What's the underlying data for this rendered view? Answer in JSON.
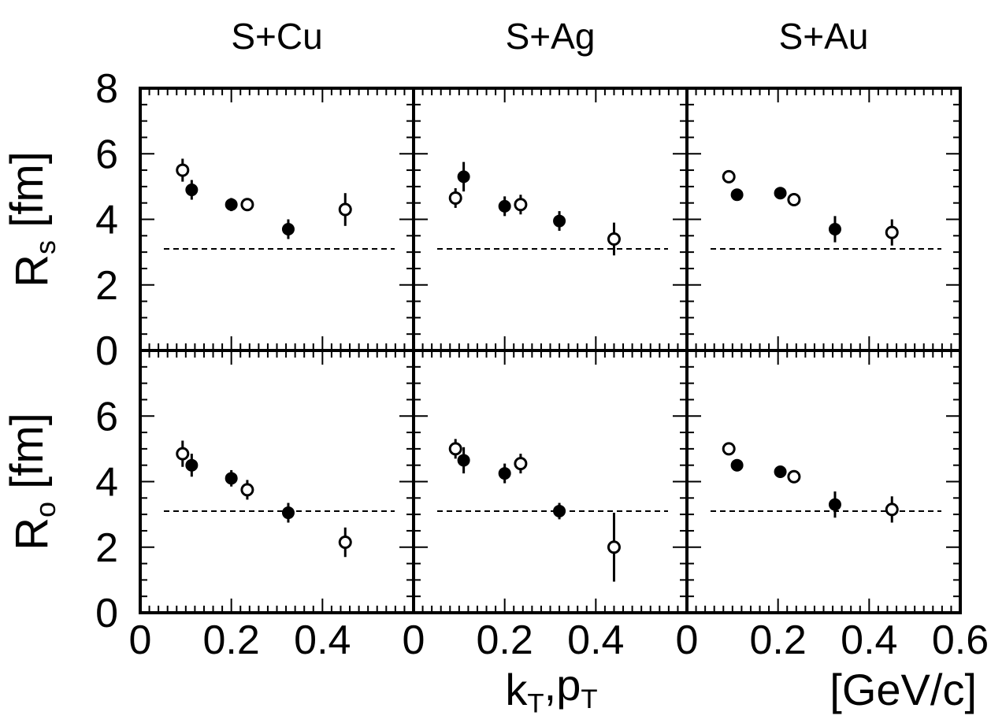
{
  "chart_data": {
    "type": "scatter",
    "panel_titles": [
      "S+Cu",
      "S+Ag",
      "S+Au"
    ],
    "rows": [
      {
        "id": "Rs",
        "label_main": "R",
        "label_sub": "s",
        "label_rest": " [fm]"
      },
      {
        "id": "Ro",
        "label_main": "R",
        "label_sub": "o",
        "label_rest": " [fm]"
      }
    ],
    "xlabel_main": "k",
    "xlabel_sub1": "T",
    "xlabel_mid": ",p",
    "xlabel_sub2": "T",
    "x_unit": "[GeV/c]",
    "xlim": [
      0,
      0.6
    ],
    "ylim": [
      0,
      8
    ],
    "x_ticks": [
      "0",
      "0.2",
      "0.4"
    ],
    "x_ticks_last": [
      "0",
      "0.2",
      "0.4",
      "0.6"
    ],
    "y_ticks_top": [
      "8",
      "6",
      "4",
      "2",
      "0"
    ],
    "y_ticks_bottom": [
      "6",
      "4",
      "2",
      "0"
    ],
    "reference_line": 3.1,
    "panels": [
      {
        "title": "S+Cu",
        "row": "Rs",
        "points": [
          {
            "x": 0.093,
            "y": 5.5,
            "err": 0.35,
            "filled": false
          },
          {
            "x": 0.113,
            "y": 4.9,
            "err": 0.3,
            "filled": true
          },
          {
            "x": 0.2,
            "y": 4.45,
            "err": 0.2,
            "filled": true
          },
          {
            "x": 0.235,
            "y": 4.45,
            "err": 0.15,
            "filled": false
          },
          {
            "x": 0.325,
            "y": 3.7,
            "err": 0.3,
            "filled": true
          },
          {
            "x": 0.45,
            "y": 4.3,
            "err": 0.5,
            "filled": false
          }
        ]
      },
      {
        "title": "S+Ag",
        "row": "Rs",
        "points": [
          {
            "x": 0.092,
            "y": 4.65,
            "err": 0.3,
            "filled": false
          },
          {
            "x": 0.11,
            "y": 5.3,
            "err": 0.45,
            "filled": true
          },
          {
            "x": 0.2,
            "y": 4.4,
            "err": 0.3,
            "filled": true
          },
          {
            "x": 0.235,
            "y": 4.45,
            "err": 0.3,
            "filled": false
          },
          {
            "x": 0.32,
            "y": 3.95,
            "err": 0.3,
            "filled": true
          },
          {
            "x": 0.44,
            "y": 3.4,
            "err": 0.5,
            "filled": false
          }
        ]
      },
      {
        "title": "S+Au",
        "row": "Rs",
        "points": [
          {
            "x": 0.092,
            "y": 5.3,
            "err": 0.15,
            "filled": false
          },
          {
            "x": 0.11,
            "y": 4.75,
            "err": 0.15,
            "filled": true
          },
          {
            "x": 0.205,
            "y": 4.8,
            "err": 0.15,
            "filled": true
          },
          {
            "x": 0.235,
            "y": 4.6,
            "err": 0.15,
            "filled": false
          },
          {
            "x": 0.325,
            "y": 3.7,
            "err": 0.4,
            "filled": true
          },
          {
            "x": 0.45,
            "y": 3.6,
            "err": 0.4,
            "filled": false
          }
        ]
      },
      {
        "title": "S+Cu",
        "row": "Ro",
        "points": [
          {
            "x": 0.093,
            "y": 4.85,
            "err": 0.4,
            "filled": false
          },
          {
            "x": 0.113,
            "y": 4.5,
            "err": 0.35,
            "filled": true
          },
          {
            "x": 0.2,
            "y": 4.1,
            "err": 0.25,
            "filled": true
          },
          {
            "x": 0.235,
            "y": 3.75,
            "err": 0.3,
            "filled": false
          },
          {
            "x": 0.325,
            "y": 3.05,
            "err": 0.3,
            "filled": true
          },
          {
            "x": 0.45,
            "y": 2.15,
            "err": 0.45,
            "filled": false
          }
        ]
      },
      {
        "title": "S+Ag",
        "row": "Ro",
        "points": [
          {
            "x": 0.092,
            "y": 5.0,
            "err": 0.3,
            "filled": false
          },
          {
            "x": 0.11,
            "y": 4.65,
            "err": 0.4,
            "filled": true
          },
          {
            "x": 0.2,
            "y": 4.25,
            "err": 0.3,
            "filled": true
          },
          {
            "x": 0.235,
            "y": 4.55,
            "err": 0.3,
            "filled": false
          },
          {
            "x": 0.32,
            "y": 3.1,
            "err": 0.25,
            "filled": true
          },
          {
            "x": 0.44,
            "y": 2.0,
            "err": 1.05,
            "filled": false
          }
        ]
      },
      {
        "title": "S+Au",
        "row": "Ro",
        "points": [
          {
            "x": 0.092,
            "y": 5.0,
            "err": 0.15,
            "filled": false
          },
          {
            "x": 0.11,
            "y": 4.5,
            "err": 0.15,
            "filled": true
          },
          {
            "x": 0.205,
            "y": 4.3,
            "err": 0.15,
            "filled": true
          },
          {
            "x": 0.235,
            "y": 4.15,
            "err": 0.15,
            "filled": false
          },
          {
            "x": 0.325,
            "y": 3.3,
            "err": 0.4,
            "filled": true
          },
          {
            "x": 0.45,
            "y": 3.15,
            "err": 0.4,
            "filled": false
          }
        ]
      }
    ]
  }
}
